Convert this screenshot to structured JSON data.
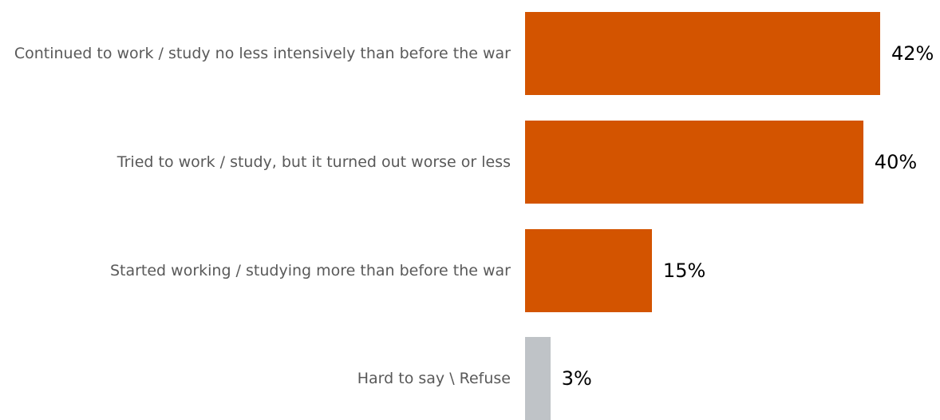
{
  "chart_data": {
    "type": "bar",
    "orientation": "horizontal",
    "categories": [
      "Continued to work / study no less intensively than before the war",
      "Tried to work / study, but it turned out worse or less",
      "Started working / studying more than before the war",
      "Hard to say \\ Refuse"
    ],
    "values": [
      42,
      40,
      15,
      3
    ],
    "value_labels": [
      "42%",
      "40%",
      "15%",
      "3%"
    ],
    "colors": [
      "#d35400",
      "#d35400",
      "#d35400",
      "#bfc3c7"
    ],
    "xlim": [
      0,
      42
    ],
    "grid": false,
    "legend": "none"
  }
}
